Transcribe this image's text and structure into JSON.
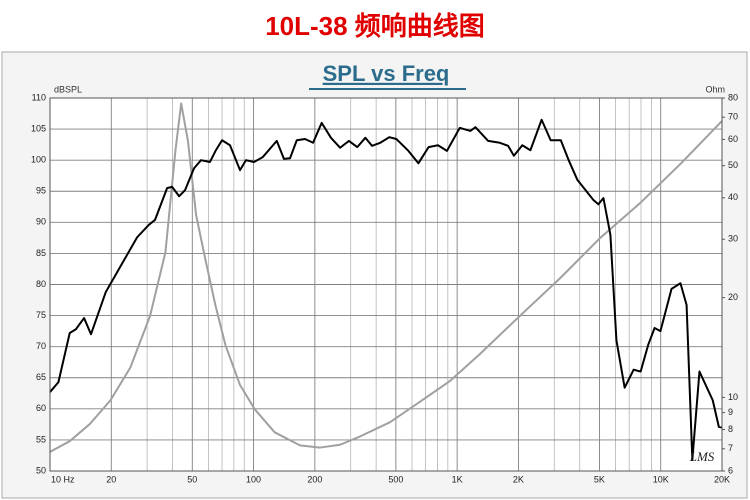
{
  "title": "10L-38   频响曲线图",
  "chart_data": {
    "type": "line",
    "title": "SPL vs Freq",
    "ylabel": "dBSPL",
    "y2label": "Ohm",
    "annotation": "LMS",
    "xscale": "log",
    "y2scale": "log",
    "grid": true,
    "xlim": [
      10,
      20000
    ],
    "ylim": [
      50,
      110
    ],
    "y2lim": [
      6,
      80
    ],
    "xticks": [
      {
        "value": 10,
        "label": "10  Hz"
      },
      20,
      50,
      100,
      200,
      500,
      {
        "value": 1000,
        "label": "1K"
      },
      {
        "value": 2000,
        "label": "2K"
      },
      {
        "value": 5000,
        "label": "5K"
      },
      {
        "value": 10000,
        "label": "10K"
      },
      {
        "value": 20000,
        "label": "20K"
      }
    ],
    "xminorticks": [
      30,
      40,
      60,
      70,
      80,
      90,
      300,
      400,
      600,
      700,
      800,
      900,
      3000,
      4000,
      6000,
      7000,
      8000,
      9000
    ],
    "yticks": [
      50,
      55,
      60,
      65,
      70,
      75,
      80,
      85,
      90,
      95,
      100,
      105,
      110
    ],
    "y2ticks": [
      6,
      7,
      8,
      9,
      10,
      20,
      30,
      40,
      50,
      60,
      70,
      80
    ],
    "series": [
      {
        "name": "SPL",
        "color": "#000000",
        "x": [
          10,
          11,
          12.5,
          13.4,
          14.7,
          15.9,
          18.8,
          26.8,
          30.6,
          32.8,
          37.6,
          39.8,
          43.1,
          46.1,
          51,
          55.2,
          61,
          65.3,
          70,
          76.6,
          85.8,
          91.8,
          100.5,
          111,
          130,
          141,
          151,
          163,
          179,
          196,
          216,
          240,
          266,
          294,
          323,
          354,
          382,
          419,
          464,
          503,
          576,
          645,
          724,
          805,
          891,
          1030,
          1160,
          1230,
          1420,
          1620,
          1780,
          1900,
          2090,
          2290,
          2600,
          2880,
          3230,
          3530,
          3900,
          4670,
          4940,
          5230,
          5660,
          6060,
          6650,
          7360,
          7970,
          8680,
          9330,
          9970,
          11300,
          12500,
          13400,
          14300,
          15500,
          18000,
          19300,
          20000
        ],
        "values": [
          62.7,
          64.3,
          72.2,
          72.8,
          74.6,
          72,
          78.8,
          87.6,
          89.6,
          90.4,
          95.5,
          95.7,
          94.2,
          95.2,
          98.7,
          100,
          99.7,
          101.6,
          103.2,
          102.4,
          98.4,
          100,
          99.7,
          100.5,
          103.1,
          100.2,
          100.3,
          103.2,
          103.4,
          102.8,
          106,
          103.6,
          102,
          103.1,
          102.1,
          103.6,
          102.3,
          102.8,
          103.7,
          103.4,
          101.5,
          99.5,
          102.1,
          102.4,
          101.5,
          105.2,
          104.7,
          105.3,
          103.1,
          102.8,
          102.3,
          100.7,
          102.4,
          101.6,
          106.5,
          103.2,
          103.2,
          100,
          96.8,
          93.6,
          92.9,
          93.9,
          88,
          71,
          63.4,
          66.3,
          66,
          70.3,
          73,
          72.5,
          79.3,
          80.2,
          76.7,
          51.8,
          66,
          61.4,
          57.1,
          57
        ]
      },
      {
        "name": "Impedance",
        "color": "#a0a0a0",
        "axis": "y2",
        "x": [
          10,
          12.5,
          15.7,
          19.8,
          24.8,
          31,
          36.9,
          41.3,
          44.1,
          47.6,
          52.2,
          57.8,
          64.9,
          72.7,
          85.8,
          101.5,
          127,
          169,
          212,
          266,
          334,
          468,
          656,
          920,
          1290,
          2030,
          3230,
          5050,
          7970,
          12500,
          20000
        ],
        "values": [
          6.85,
          7.38,
          8.32,
          9.8,
          12.3,
          17.6,
          27.4,
          55.4,
          77,
          59.4,
          35.5,
          26.3,
          19,
          14.4,
          10.9,
          9.2,
          7.85,
          7.17,
          7.06,
          7.2,
          7.63,
          8.42,
          9.7,
          11.2,
          13.5,
          17.6,
          23,
          30.3,
          38.7,
          50.6,
          68.2
        ]
      }
    ]
  }
}
